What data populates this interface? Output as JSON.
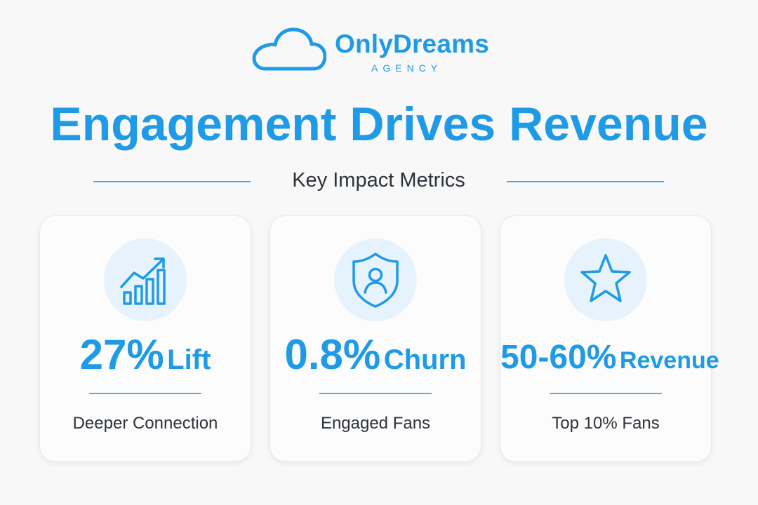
{
  "brand": {
    "name": "OnlyDreams",
    "subtitle": "AGENCY",
    "logo_icon": "cloud-icon",
    "color": "#1f9ae6"
  },
  "headline": "Engagement Drives Revenue",
  "subheading": "Key Impact Metrics",
  "cards": [
    {
      "icon": "growth-chart-icon",
      "value": "27%",
      "unit": "Lift",
      "caption": "Deeper Connection"
    },
    {
      "icon": "shield-user-icon",
      "value": "0.8%",
      "unit": "Churn",
      "caption": "Engaged Fans"
    },
    {
      "icon": "star-icon",
      "value": "50-60%",
      "unit": "Revenue",
      "caption": "Top 10% Fans"
    }
  ],
  "colors": {
    "accent": "#1f9ae6",
    "icon_background": "#e6f3fd",
    "page_background": "#f8f8f8",
    "text": "#2e333a"
  }
}
